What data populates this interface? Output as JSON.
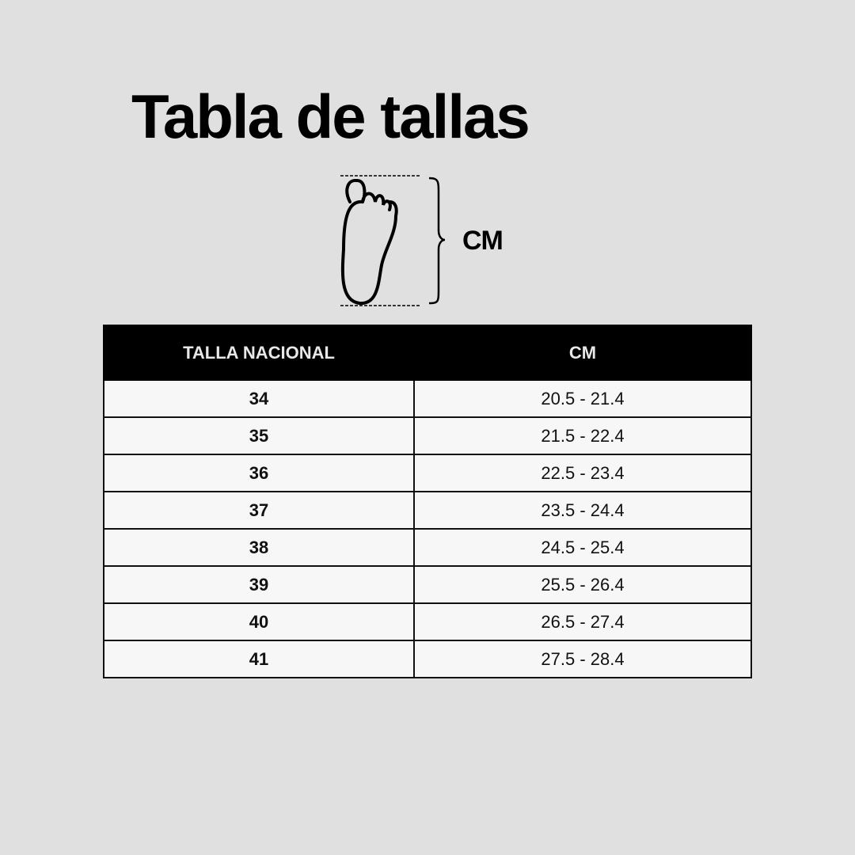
{
  "title": "Tabla de tallas",
  "illustration": {
    "icon": "foot-length-icon",
    "label": "CM"
  },
  "table": {
    "headers": [
      "TALLA NACIONAL",
      "CM"
    ],
    "rows": [
      {
        "size": "34",
        "cm": "20.5 - 21.4"
      },
      {
        "size": "35",
        "cm": "21.5 - 22.4"
      },
      {
        "size": "36",
        "cm": "22.5 - 23.4"
      },
      {
        "size": "37",
        "cm": "23.5 - 24.4"
      },
      {
        "size": "38",
        "cm": "24.5 - 25.4"
      },
      {
        "size": "39",
        "cm": "25.5 - 26.4"
      },
      {
        "size": "40",
        "cm": "26.5 - 27.4"
      },
      {
        "size": "41",
        "cm": "27.5 - 28.4"
      }
    ]
  },
  "colors": {
    "background": "#e0e0e0",
    "header": "#000000",
    "cell": "#f8f7f8"
  }
}
